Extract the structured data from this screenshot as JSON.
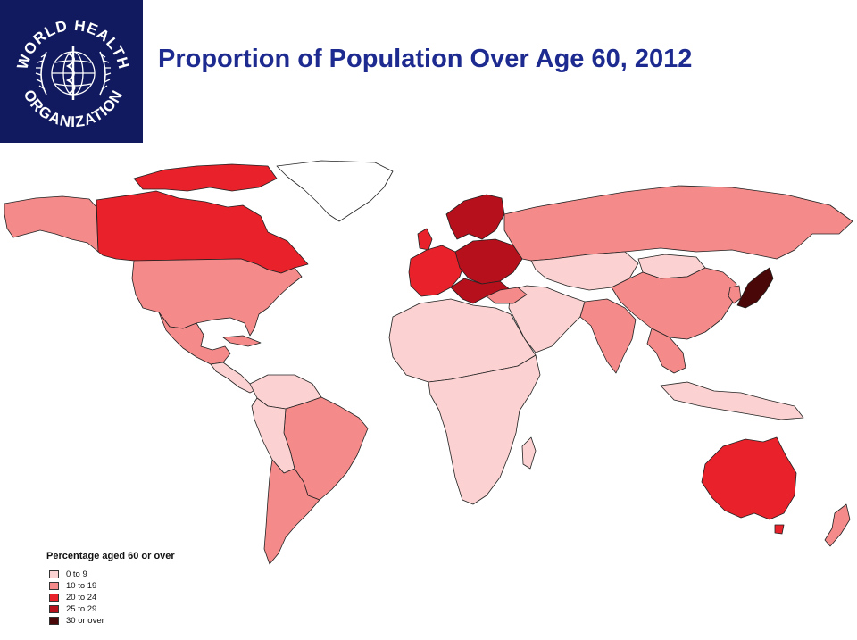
{
  "logo": {
    "text": "WORLD HEALTH ORGANIZATION",
    "text_top": "WORLD HEALTH",
    "text_bottom": "ORGANIZATION"
  },
  "title": "Proportion of Population Over Age 60, 2012",
  "legend": {
    "title": "Percentage aged 60 or over",
    "items": [
      {
        "label": "0 to   9",
        "color": "#fbd1d1"
      },
      {
        "label": "10 to 19",
        "color": "#f58a8a"
      },
      {
        "label": "20 to 24",
        "color": "#e8212a"
      },
      {
        "label": "25 to 29",
        "color": "#b5101b"
      },
      {
        "label": "30 or over",
        "color": "#4a0707"
      }
    ]
  },
  "colors": {
    "logo_background": "#111a5e",
    "title": "#1d2a8f",
    "no_data": "#ffffff"
  }
}
